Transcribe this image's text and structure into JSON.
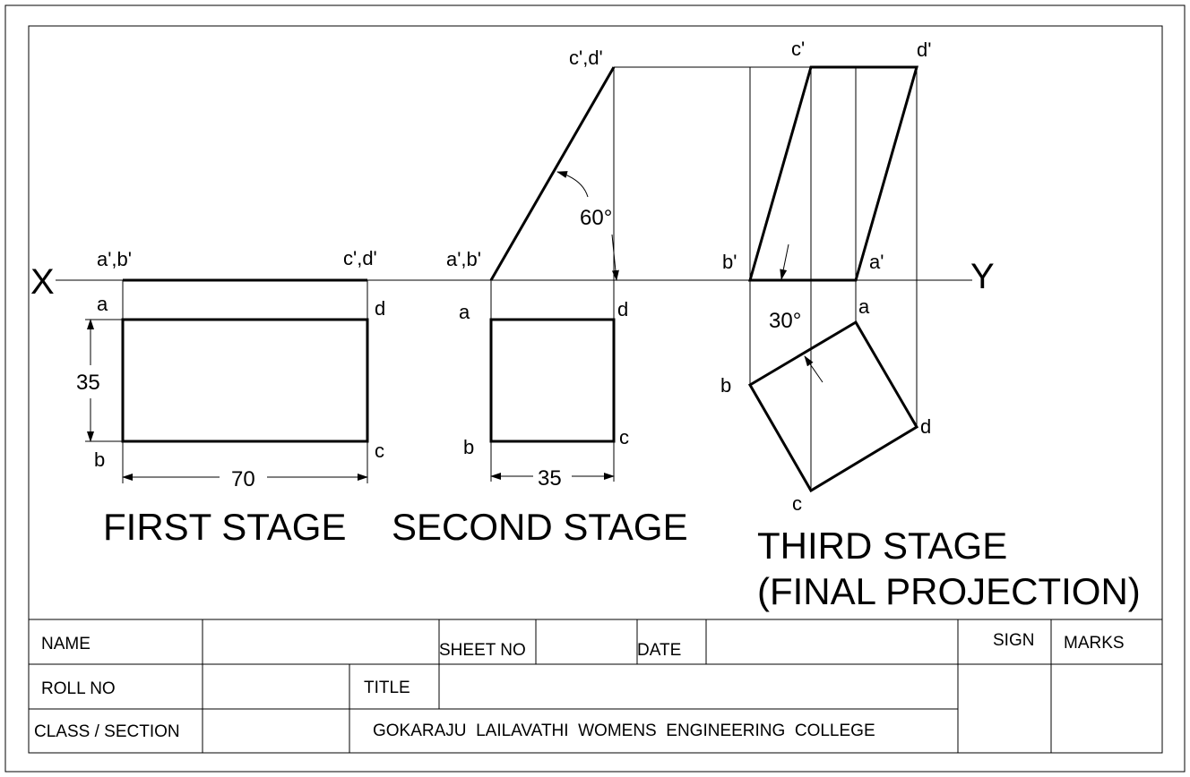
{
  "axis": {
    "x_label": "X",
    "y_label": "Y"
  },
  "first_stage": {
    "title": "FIRST STAGE",
    "labels": {
      "top_left": "a',b'",
      "top_right": "c',d'",
      "a": "a",
      "b": "b",
      "c": "c",
      "d": "d"
    },
    "dim_length": "70",
    "dim_width": "35"
  },
  "second_stage": {
    "title": "SECOND STAGE",
    "labels": {
      "bottom": "a',b'",
      "top": "c',d'",
      "a": "a",
      "b": "b",
      "c": "c",
      "d": "d"
    },
    "angle": "60°",
    "dim_width": "35"
  },
  "third_stage": {
    "title_line1": "THIRD STAGE",
    "title_line2": "(FINAL PROJECTION)",
    "labels": {
      "c_prime": "c'",
      "d_prime": "d'",
      "b_prime": "b'",
      "a_prime": "a'",
      "a": "a",
      "b": "b",
      "c": "c",
      "d": "d"
    },
    "angle": "30°"
  },
  "title_block": {
    "name_label": "NAME",
    "sheet_no_label": "SHEET NO",
    "date_label": "DATE",
    "sign_label": "SIGN",
    "marks_label": "MARKS",
    "roll_no_label": "ROLL NO",
    "title_label": "TITLE",
    "class_section_label": "CLASS / SECTION",
    "college_name": "GOKARAJU  LAILAVATHI  WOMENS  ENGINEERING  COLLEGE"
  }
}
